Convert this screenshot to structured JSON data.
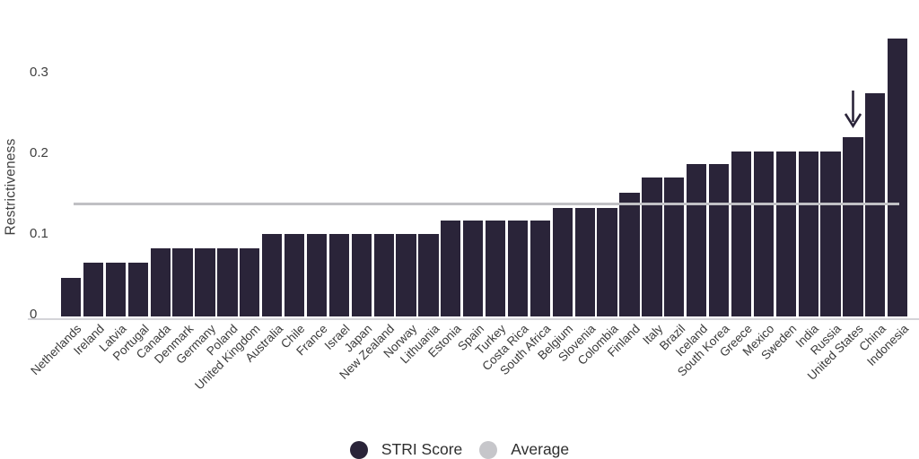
{
  "chart_data": {
    "type": "bar",
    "title": "",
    "xlabel": "",
    "ylabel": "Restrictiveness",
    "ylim": [
      0,
      0.37
    ],
    "yticks": [
      0,
      0.1,
      0.2,
      0.3
    ],
    "ytick_labels": [
      "0",
      "0.1",
      "0.2",
      "0.3"
    ],
    "grid": false,
    "legend_position": "bottom-center",
    "categories": [
      "Netherlands",
      "Ireland",
      "Latvia",
      "Portugal",
      "Canada",
      "Denmark",
      "Germany",
      "Poland",
      "United Kingdom",
      "Australia",
      "Chile",
      "France",
      "Israel",
      "Japan",
      "New Zealand",
      "Norway",
      "Lithuania",
      "Estonia",
      "Spain",
      "Turkey",
      "Costa Rica",
      "South Africa",
      "Belgium",
      "Slovenia",
      "Colombia",
      "Finland",
      "Italy",
      "Brazil",
      "Iceland",
      "South Korea",
      "Greece",
      "Mexico",
      "Sweden",
      "India",
      "Russia",
      "United States",
      "China",
      "Indonesia"
    ],
    "values": [
      0.048,
      0.067,
      0.067,
      0.067,
      0.084,
      0.084,
      0.084,
      0.084,
      0.084,
      0.102,
      0.102,
      0.102,
      0.102,
      0.102,
      0.102,
      0.102,
      0.102,
      0.119,
      0.119,
      0.119,
      0.119,
      0.119,
      0.135,
      0.135,
      0.135,
      0.153,
      0.172,
      0.172,
      0.189,
      0.189,
      0.205,
      0.205,
      0.205,
      0.205,
      0.205,
      0.222,
      0.277,
      0.344
    ],
    "average": 0.139,
    "annotation": {
      "type": "down-arrow",
      "target": "United States"
    },
    "legend": [
      {
        "label": "STRI Score",
        "color": "#2a2439"
      },
      {
        "label": "Average",
        "color": "#c6c6ca"
      }
    ]
  },
  "colors": {
    "bar": "#2a2439",
    "average_line": "#c0c0c4",
    "axis_line": "#d4d4d8",
    "text": "#3a3a3a"
  }
}
